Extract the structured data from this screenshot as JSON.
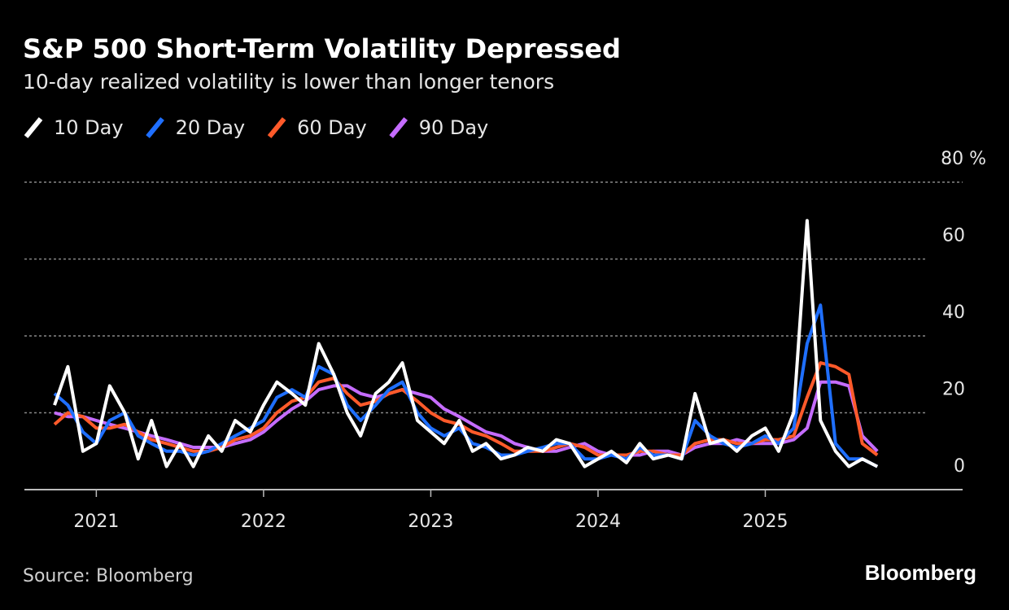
{
  "chart_data": {
    "type": "line",
    "title": "S&P 500 Short-Term Volatility Depressed",
    "subtitle": "10-day realized volatility is lower than longer tenors",
    "source": "Source: Bloomberg",
    "brand": "Bloomberg",
    "x": [
      2020.75,
      2020.83,
      2020.92,
      2021,
      2021.08,
      2021.17,
      2021.25,
      2021.33,
      2021.42,
      2021.5,
      2021.58,
      2021.67,
      2021.75,
      2021.83,
      2021.92,
      2022,
      2022.08,
      2022.17,
      2022.25,
      2022.33,
      2022.42,
      2022.5,
      2022.58,
      2022.67,
      2022.75,
      2022.83,
      2022.92,
      2023,
      2023.08,
      2023.17,
      2023.25,
      2023.33,
      2023.42,
      2023.5,
      2023.58,
      2023.67,
      2023.75,
      2023.83,
      2023.92,
      2024,
      2024.08,
      2024.17,
      2024.25,
      2024.33,
      2024.42,
      2024.5,
      2024.58,
      2024.67,
      2024.75,
      2024.83,
      2024.92,
      2025,
      2025.08,
      2025.17,
      2025.25,
      2025.33,
      2025.42,
      2025.5,
      2025.58,
      2025.67
    ],
    "series": [
      {
        "name": "10 Day",
        "color": "#ffffff",
        "values": [
          22,
          32,
          10,
          12,
          27,
          20,
          8,
          18,
          6,
          12,
          6,
          14,
          10,
          18,
          15,
          22,
          28,
          25,
          22,
          38,
          30,
          20,
          14,
          25,
          28,
          33,
          18,
          15,
          12,
          18,
          10,
          12,
          8,
          9,
          11,
          10,
          13,
          12,
          6,
          8,
          10,
          7,
          12,
          8,
          9,
          8,
          25,
          12,
          13,
          10,
          14,
          16,
          10,
          20,
          70,
          18,
          10,
          6,
          8,
          6
        ]
      },
      {
        "name": "20 Day",
        "color": "#1f6fff",
        "values": [
          25,
          22,
          15,
          12,
          18,
          20,
          14,
          12,
          10,
          10,
          9,
          10,
          12,
          14,
          16,
          18,
          24,
          26,
          24,
          32,
          30,
          22,
          18,
          22,
          26,
          28,
          20,
          16,
          14,
          16,
          12,
          11,
          9,
          9,
          10,
          11,
          12,
          12,
          8,
          8,
          9,
          8,
          11,
          9,
          9,
          8,
          18,
          14,
          12,
          11,
          12,
          14,
          12,
          16,
          38,
          48,
          12,
          8,
          8,
          6
        ]
      },
      {
        "name": "60 Day",
        "color": "#ff5a2a",
        "values": [
          17,
          20,
          19,
          16,
          16,
          17,
          15,
          13,
          12,
          11,
          10,
          10,
          11,
          13,
          14,
          16,
          20,
          23,
          24,
          28,
          29,
          25,
          22,
          23,
          25,
          26,
          23,
          20,
          18,
          17,
          15,
          14,
          12,
          10,
          10,
          10,
          11,
          12,
          11,
          9,
          9,
          9,
          10,
          10,
          9,
          9,
          12,
          13,
          13,
          12,
          12,
          13,
          13,
          14,
          24,
          33,
          32,
          30,
          12,
          9
        ]
      },
      {
        "name": "90 Day",
        "color": "#c56cff",
        "values": [
          20,
          19,
          19,
          18,
          17,
          16,
          15,
          14,
          13,
          12,
          11,
          11,
          11,
          12,
          13,
          15,
          18,
          21,
          23,
          26,
          27,
          27,
          25,
          24,
          25,
          26,
          25,
          24,
          21,
          19,
          17,
          15,
          14,
          12,
          11,
          10,
          10,
          11,
          12,
          10,
          9,
          9,
          9,
          10,
          10,
          9,
          11,
          12,
          12,
          13,
          12,
          12,
          12,
          13,
          16,
          28,
          28,
          27,
          14,
          10
        ]
      }
    ],
    "xlim": [
      2020.57,
      2026.18
    ],
    "xticks": [
      2021,
      2022,
      2023,
      2024,
      2025
    ],
    "ylim": [
      0,
      80
    ],
    "yticks": [
      0,
      20,
      40,
      60,
      {
        "value": 80,
        "label": "80 %"
      }
    ],
    "grid": true
  }
}
